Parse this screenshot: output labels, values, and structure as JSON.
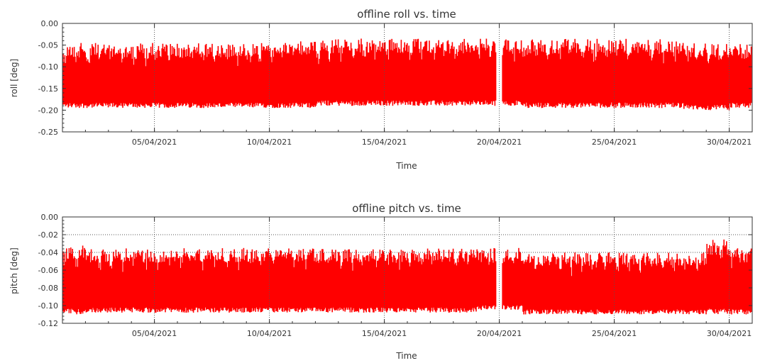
{
  "colors": {
    "series": "#ff0000",
    "frame": "#333333",
    "grid": "#555555"
  },
  "chart_data": [
    {
      "type": "area",
      "title": "offline roll vs. time",
      "xlabel": "Time",
      "ylabel": "roll [deg]",
      "ylim": [
        -0.25,
        0.0
      ],
      "xlim": [
        "2021-04-01",
        "2021-05-01"
      ],
      "yticks": [
        "0.00",
        "-0.05",
        "-0.10",
        "-0.15",
        "-0.20",
        "-0.25"
      ],
      "xticks": [
        "05/04/2021",
        "10/04/2021",
        "15/04/2021",
        "20/04/2021",
        "25/04/2021",
        "30/04/2021"
      ],
      "grid": "dotted vertical at x ticks",
      "series": [
        {
          "color": "#ff0000",
          "upper_envelope": [
            -0.045,
            -0.045,
            -0.045,
            -0.045,
            -0.045,
            -0.045,
            -0.045,
            -0.045,
            -0.045,
            -0.045,
            -0.04,
            -0.035,
            -0.035,
            -0.035,
            -0.035,
            -0.035,
            -0.035,
            -0.035,
            -0.035,
            -0.035,
            -0.035,
            -0.035,
            -0.035,
            -0.035,
            -0.035,
            -0.035,
            -0.04,
            -0.045,
            -0.045,
            -0.045
          ],
          "lower_envelope": [
            -0.195,
            -0.195,
            -0.195,
            -0.195,
            -0.195,
            -0.195,
            -0.195,
            -0.195,
            -0.195,
            -0.195,
            -0.195,
            -0.19,
            -0.19,
            -0.19,
            -0.19,
            -0.19,
            -0.19,
            -0.19,
            -0.19,
            -0.19,
            -0.195,
            -0.195,
            -0.195,
            -0.195,
            -0.195,
            -0.195,
            -0.195,
            -0.2,
            -0.2,
            -0.195
          ],
          "gap_dates": [
            "2021-04-20"
          ]
        }
      ]
    },
    {
      "type": "area",
      "title": "offline pitch vs. time",
      "xlabel": "Time",
      "ylabel": "pitch [deg]",
      "ylim": [
        -0.12,
        0.0
      ],
      "xlim": [
        "2021-04-01",
        "2021-05-01"
      ],
      "yticks": [
        "0.00",
        "-0.02",
        "-0.04",
        "-0.06",
        "-0.08",
        "-0.10",
        "-0.12"
      ],
      "xticks": [
        "05/04/2021",
        "10/04/2021",
        "15/04/2021",
        "20/04/2021",
        "25/04/2021",
        "30/04/2021"
      ],
      "grid": "dotted vertical at x ticks; dotted horizontal at -0.02 and -0.04",
      "series": [
        {
          "color": "#ff0000",
          "upper_envelope": [
            -0.03,
            -0.035,
            -0.035,
            -0.035,
            -0.035,
            -0.035,
            -0.035,
            -0.035,
            -0.035,
            -0.035,
            -0.035,
            -0.035,
            -0.035,
            -0.035,
            -0.035,
            -0.035,
            -0.035,
            -0.035,
            -0.035,
            -0.035,
            -0.04,
            -0.04,
            -0.04,
            -0.04,
            -0.04,
            -0.04,
            -0.04,
            -0.04,
            -0.025,
            -0.035
          ],
          "lower_envelope": [
            -0.11,
            -0.108,
            -0.108,
            -0.108,
            -0.108,
            -0.108,
            -0.108,
            -0.108,
            -0.108,
            -0.108,
            -0.108,
            -0.108,
            -0.108,
            -0.108,
            -0.108,
            -0.108,
            -0.108,
            -0.108,
            -0.105,
            -0.105,
            -0.11,
            -0.11,
            -0.11,
            -0.11,
            -0.11,
            -0.11,
            -0.11,
            -0.11,
            -0.11,
            -0.11
          ],
          "gap_dates": [
            "2021-04-20"
          ]
        }
      ]
    }
  ]
}
